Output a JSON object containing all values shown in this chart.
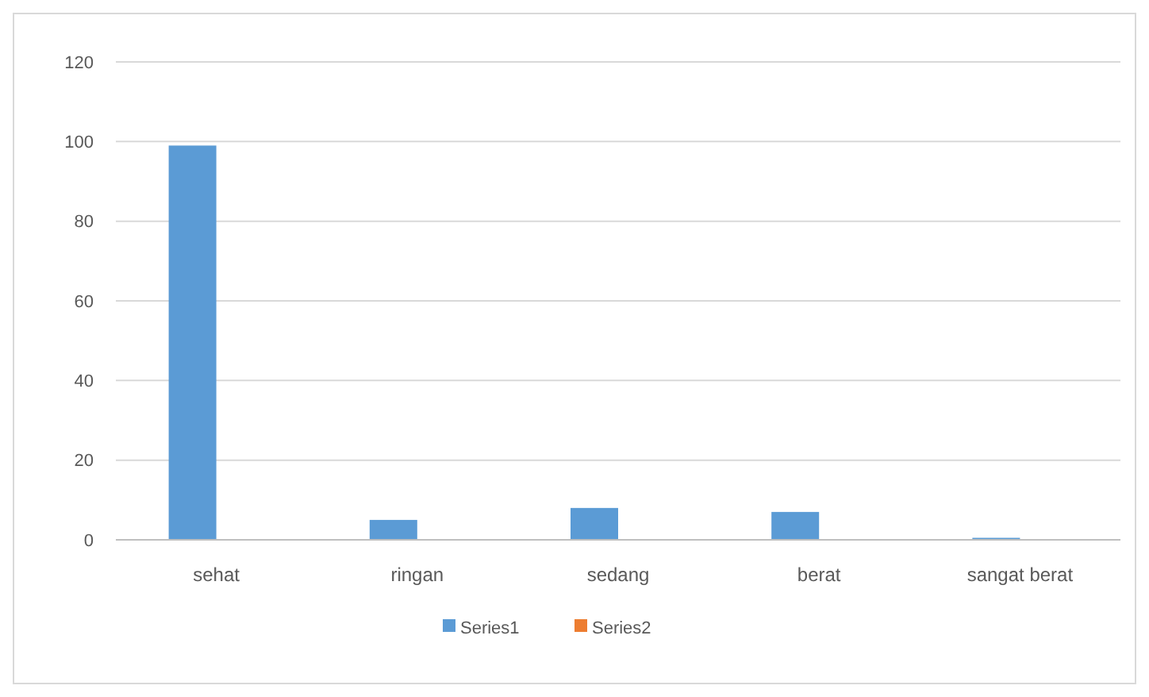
{
  "chart_data": {
    "type": "bar",
    "categories": [
      "sehat",
      "ringan",
      "sedang",
      "berat",
      "sangat berat"
    ],
    "series": [
      {
        "name": "Series1",
        "color": "#5b9bd5",
        "values": [
          99,
          5,
          8,
          7,
          0.5
        ]
      },
      {
        "name": "Series2",
        "color": "#ed7d31",
        "values": [
          0,
          0,
          0,
          0,
          0
        ]
      }
    ],
    "ylim": [
      0,
      120
    ],
    "yticks": [
      0,
      20,
      40,
      60,
      80,
      100,
      120
    ],
    "grid": "y",
    "legend": "bottom"
  }
}
